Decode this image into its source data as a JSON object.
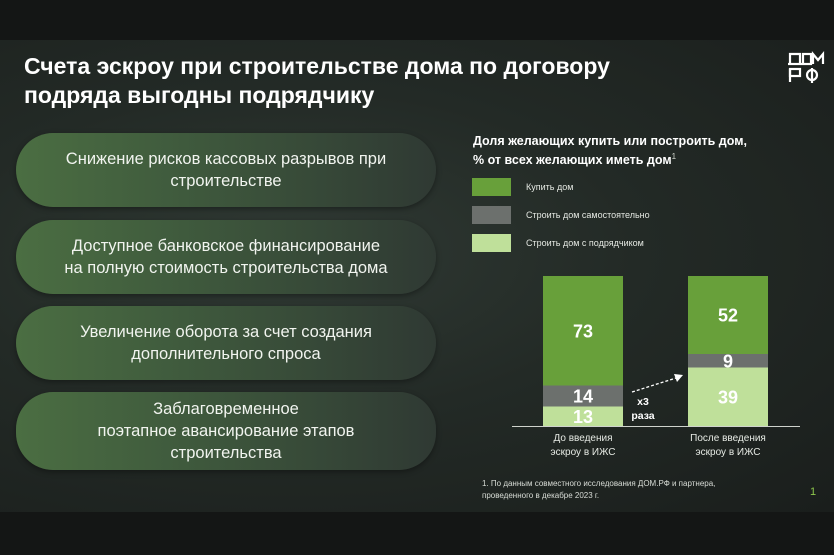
{
  "title": {
    "line1": "Счета эскроу при строительстве дома по договору",
    "line2": "подряда выгодны подрядчику"
  },
  "benefits": [
    {
      "line1": "Снижение рисков кассовых разрывов при",
      "line2": "строительстве",
      "line3": ""
    },
    {
      "line1": "Доступное банковское финансирование",
      "line2": "на полную стоимость строительства дома",
      "line3": ""
    },
    {
      "line1": "Увеличение оборота за счет создания",
      "line2": "дополнительного спроса",
      "line3": ""
    },
    {
      "line1": "Заблаговременное",
      "line2": "поэтапное авансирование этапов",
      "line3": "строительства"
    }
  ],
  "chart_title": {
    "line1": "Доля желающих купить или построить дом,",
    "line2": "% от всех желающих иметь дом",
    "footnote_mark": "1"
  },
  "chart_data": {
    "type": "bar",
    "stacked": true,
    "categories": [
      [
        "До введения",
        "эскроу в ИЖС"
      ],
      [
        "После введения",
        "эскроу в ИЖС"
      ]
    ],
    "series": [
      {
        "name": "Строить дом с подрядчиком",
        "color": "#bfe09a",
        "values": [
          13,
          39
        ]
      },
      {
        "name": "Строить дом самостоятельно",
        "color": "#6c706d",
        "values": [
          14,
          9
        ]
      },
      {
        "name": "Купить дом",
        "color": "#68a03a",
        "values": [
          73,
          52
        ]
      }
    ],
    "legend_order": [
      "Купить дом",
      "Строить дом самостоятельно",
      "Строить дом с подрядчиком"
    ],
    "annotation": {
      "line1": "х3",
      "line2": "раза"
    },
    "ylim": [
      0,
      100
    ]
  },
  "footnote": {
    "line1": "1. По данным совместного исследования ДОМ.РФ и партнера,",
    "line2": "проведенного в декабре 2023 г."
  },
  "page_number": "1",
  "colors": {
    "accent_green": "#68a03a",
    "light_green": "#bfe09a",
    "gray": "#6c706d"
  }
}
